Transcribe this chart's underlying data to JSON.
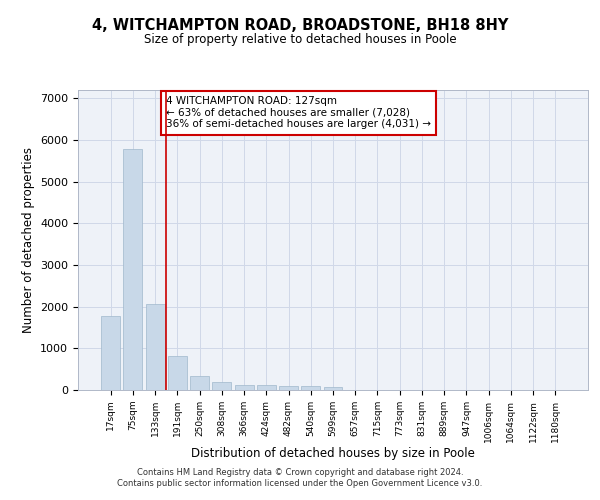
{
  "title": "4, WITCHAMPTON ROAD, BROADSTONE, BH18 8HY",
  "subtitle": "Size of property relative to detached houses in Poole",
  "xlabel": "Distribution of detached houses by size in Poole",
  "ylabel": "Number of detached properties",
  "footer_line1": "Contains HM Land Registry data © Crown copyright and database right 2024.",
  "footer_line2": "Contains public sector information licensed under the Open Government Licence v3.0.",
  "bar_color": "#c8d8e8",
  "bar_edgecolor": "#a0b8cc",
  "grid_color": "#d0d8e8",
  "background_color": "#eef2f8",
  "vline_color": "#cc0000",
  "vline_x": 2.5,
  "annotation_text": "4 WITCHAMPTON ROAD: 127sqm\n← 63% of detached houses are smaller (7,028)\n36% of semi-detached houses are larger (4,031) →",
  "annotation_box_color": "#ffffff",
  "annotation_box_edgecolor": "#cc0000",
  "bin_labels": [
    "17sqm",
    "75sqm",
    "133sqm",
    "191sqm",
    "250sqm",
    "308sqm",
    "366sqm",
    "424sqm",
    "482sqm",
    "540sqm",
    "599sqm",
    "657sqm",
    "715sqm",
    "773sqm",
    "831sqm",
    "889sqm",
    "947sqm",
    "1006sqm",
    "1064sqm",
    "1122sqm",
    "1180sqm"
  ],
  "bar_values": [
    1780,
    5780,
    2060,
    820,
    340,
    200,
    120,
    110,
    90,
    90,
    75,
    0,
    0,
    0,
    0,
    0,
    0,
    0,
    0,
    0,
    0
  ],
  "ylim": [
    0,
    7200
  ],
  "yticks": [
    0,
    1000,
    2000,
    3000,
    4000,
    5000,
    6000,
    7000
  ]
}
